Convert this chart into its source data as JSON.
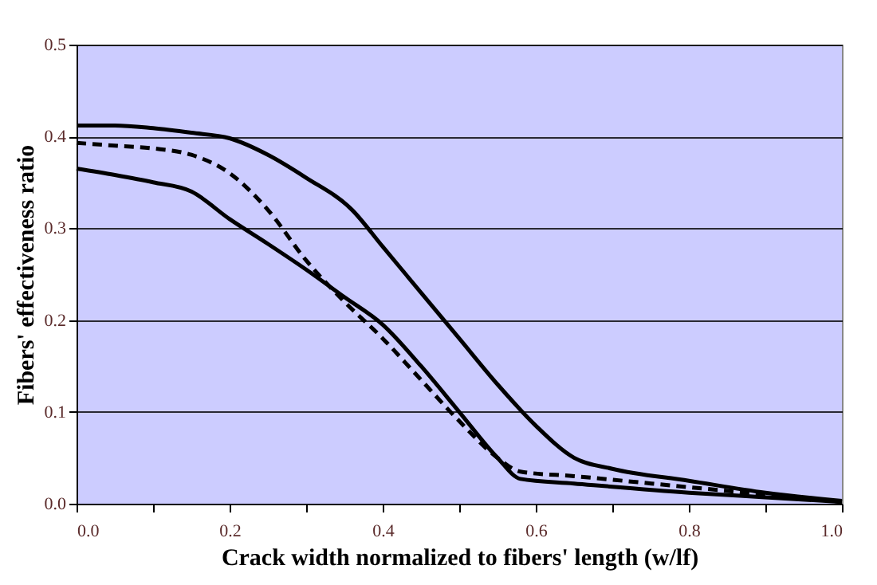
{
  "chart_data": {
    "type": "line",
    "xlabel": "Crack width normalized to  fibers' length (w/lf)",
    "ylabel": "Fibers' effectiveness ratio",
    "xlim": [
      0,
      1
    ],
    "ylim": [
      0,
      0.5
    ],
    "xticks": [
      {
        "value": 0,
        "label": "0.0"
      },
      {
        "value": 0.1,
        "label": null
      },
      {
        "value": 0.2,
        "label": "0.2"
      },
      {
        "value": 0.3,
        "label": null
      },
      {
        "value": 0.4,
        "label": "0.4"
      },
      {
        "value": 0.5,
        "label": null
      },
      {
        "value": 0.6,
        "label": "0.6"
      },
      {
        "value": 0.7,
        "label": null
      },
      {
        "value": 0.8,
        "label": "0.8"
      },
      {
        "value": 0.9,
        "label": null
      },
      {
        "value": 1,
        "label": "1.0"
      }
    ],
    "yticks": [
      {
        "value": 0,
        "label": "0.0"
      },
      {
        "value": 0.1,
        "label": "0.1"
      },
      {
        "value": 0.2,
        "label": "0.2"
      },
      {
        "value": 0.3,
        "label": "0.3"
      },
      {
        "value": 0.4,
        "label": "0.4"
      },
      {
        "value": 0.5,
        "label": "0.5"
      }
    ],
    "grid": "y",
    "marker": "none",
    "series": [
      {
        "color": "#000000",
        "line_style": "solid",
        "x": [
          0,
          0.05,
          0.1,
          0.15,
          0.2,
          0.25,
          0.3,
          0.36,
          0.4,
          0.45,
          0.5,
          0.55,
          0.6,
          0.65,
          0.7,
          0.8,
          0.9,
          1.0
        ],
        "values": [
          0.412,
          0.412,
          0.409,
          0.404,
          0.398,
          0.38,
          0.355,
          0.32,
          0.28,
          0.23,
          0.18,
          0.13,
          0.085,
          0.05,
          0.038,
          0.025,
          0.012,
          0.003
        ]
      },
      {
        "color": "#000000",
        "line_style": "dashed",
        "x": [
          0,
          0.05,
          0.1,
          0.15,
          0.2,
          0.25,
          0.3,
          0.35,
          0.4,
          0.45,
          0.5,
          0.55,
          0.58,
          0.65,
          0.8,
          0.9,
          1.0
        ],
        "values": [
          0.393,
          0.39,
          0.387,
          0.38,
          0.36,
          0.32,
          0.265,
          0.22,
          0.18,
          0.135,
          0.09,
          0.05,
          0.035,
          0.03,
          0.018,
          0.01,
          0.002
        ]
      },
      {
        "color": "#000000",
        "line_style": "solid",
        "x": [
          0,
          0.05,
          0.1,
          0.15,
          0.2,
          0.25,
          0.3,
          0.35,
          0.4,
          0.45,
          0.5,
          0.55,
          0.58,
          0.65,
          0.8,
          0.9,
          1.0
        ],
        "values": [
          0.365,
          0.358,
          0.35,
          0.34,
          0.31,
          0.283,
          0.255,
          0.225,
          0.195,
          0.15,
          0.1,
          0.05,
          0.027,
          0.022,
          0.012,
          0.007,
          0.002
        ]
      }
    ]
  }
}
